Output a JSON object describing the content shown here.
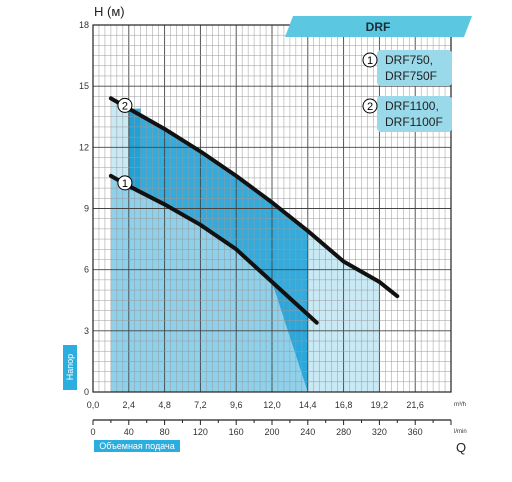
{
  "chart_data": {
    "type": "line",
    "title": "DRF",
    "ylabel": "H (м)",
    "ylabel_side": "Напор",
    "xlabel_side": "Объемная подача",
    "x_unit_label": "Q",
    "x_unit_top": "m³/h",
    "x_unit_bottom": "l/min",
    "ylim": [
      0,
      18
    ],
    "xlim_m3h": [
      0,
      24
    ],
    "xlim_lmin": [
      0,
      400
    ],
    "y_ticks": [
      "0",
      "3",
      "6",
      "9",
      "12",
      "15",
      "18"
    ],
    "x_ticks_m3h": [
      "0,0",
      "2,4",
      "4,8",
      "7,2",
      "9,6",
      "12,0",
      "14,4",
      "16,8",
      "19,2",
      "21,6"
    ],
    "x_ticks_lmin": [
      "0",
      "40",
      "80",
      "120",
      "160",
      "200",
      "240",
      "280",
      "320",
      "360"
    ],
    "grid": true,
    "series": [
      {
        "marker": "1",
        "name": "DRF750, DRF750F",
        "x_m3h": [
          1.2,
          2.4,
          4.8,
          7.2,
          9.6,
          12.0,
          13.2,
          14.4,
          15.0
        ],
        "y": [
          10.6,
          10.1,
          9.2,
          8.2,
          7.0,
          5.4,
          4.6,
          3.8,
          3.4
        ]
      },
      {
        "marker": "2",
        "name": "DRF1100, DRF1100F",
        "x_m3h": [
          1.2,
          2.4,
          4.8,
          7.2,
          9.6,
          12.0,
          14.4,
          16.8,
          19.2,
          20.4
        ],
        "y": [
          14.4,
          13.9,
          12.9,
          11.8,
          10.6,
          9.3,
          7.9,
          6.4,
          5.4,
          4.7
        ]
      }
    ],
    "legend_position": "top-right",
    "colors": {
      "grid_major": "#444444",
      "grid_minor": "#9a9a9a",
      "banner": "#5bc7e0",
      "legend_box": "#9ad9ea",
      "fill_light": "#c9e9f5",
      "fill_mid": "#8fd0ea",
      "fill_dark": "#1aa0d8",
      "curve": "#111111",
      "side_label": "#2aaee0"
    }
  }
}
